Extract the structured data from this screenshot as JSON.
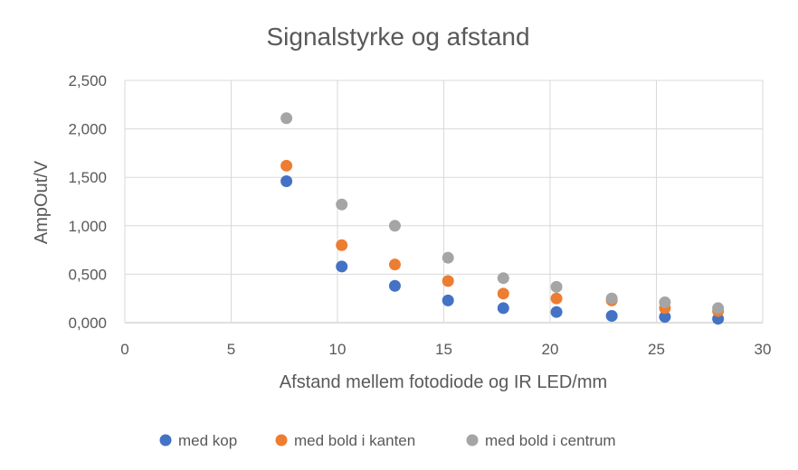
{
  "chart_data": {
    "type": "scatter",
    "title": "Signalstyrke og afstand",
    "xlabel": "Afstand mellem fotodiode og IR LED/mm",
    "ylabel": "AmpOut/V",
    "xlim": [
      0,
      30
    ],
    "ylim": [
      0,
      2.5
    ],
    "x_ticks": [
      "0",
      "5",
      "10",
      "15",
      "20",
      "25",
      "30"
    ],
    "y_ticks": [
      "0,000",
      "0,500",
      "1,000",
      "1,500",
      "2,000",
      "2,500"
    ],
    "grid": true,
    "legend_position": "bottom",
    "x": [
      7.6,
      10.2,
      12.7,
      15.2,
      17.8,
      20.3,
      22.9,
      25.4,
      27.9
    ],
    "series": [
      {
        "name": "med kop",
        "color": "#4472C4",
        "values": [
          1.46,
          0.58,
          0.38,
          0.23,
          0.15,
          0.11,
          0.07,
          0.06,
          0.04
        ]
      },
      {
        "name": "med bold i kanten",
        "color": "#ED7D31",
        "values": [
          1.62,
          0.8,
          0.6,
          0.43,
          0.3,
          0.25,
          0.23,
          0.15,
          0.12
        ]
      },
      {
        "name": "med bold i centrum",
        "color": "#A5A5A5",
        "values": [
          2.11,
          1.22,
          1.0,
          0.67,
          0.46,
          0.37,
          0.25,
          0.21,
          0.15
        ]
      }
    ]
  }
}
